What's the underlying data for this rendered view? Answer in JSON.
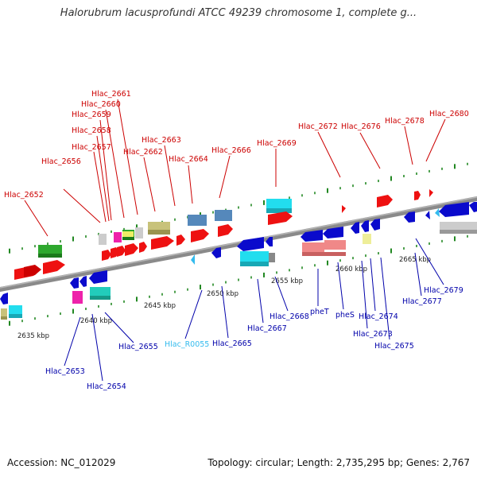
{
  "title": "Halorubrum lacusprofundi ATCC 49239 chromosome 1, complete g...",
  "footer": {
    "accession": "Accession: NC_012029",
    "summary": "Topology: circular; Length: 2,735,295 bp; Genes: 2,767"
  },
  "colors": {
    "forward_label": "#cc0000",
    "reverse_label": "#0000aa",
    "rna_label": "#33bbee",
    "backbone": "#888888",
    "tick": "#228822"
  },
  "kbp_ticks": [
    "2635 kbp",
    "2640 kbp",
    "2645 kbp",
    "2650 kbp",
    "2655 kbp",
    "2660 kbp",
    "2665 kbp"
  ],
  "forward_labels": [
    "Hlac_2652",
    "Hlac_2656",
    "Hlac_2657",
    "Hlac_2658",
    "Hlac_2659",
    "Hlac_2660",
    "Hlac_2661",
    "Hlac_2662",
    "Hlac_2663",
    "Hlac_2664",
    "Hlac_2666",
    "Hlac_2669",
    "Hlac_2672",
    "Hlac_2676",
    "Hlac_2678",
    "Hlac_2680"
  ],
  "reverse_labels": [
    "Hlac_2653",
    "Hlac_2654",
    "Hlac_2655",
    "Hlac_R0055",
    "Hlac_2665",
    "Hlac_2667",
    "Hlac_2668",
    "pheT",
    "pheS",
    "Hlac_2673",
    "Hlac_2674",
    "Hlac_2675",
    "Hlac_2677",
    "Hlac_2679"
  ]
}
